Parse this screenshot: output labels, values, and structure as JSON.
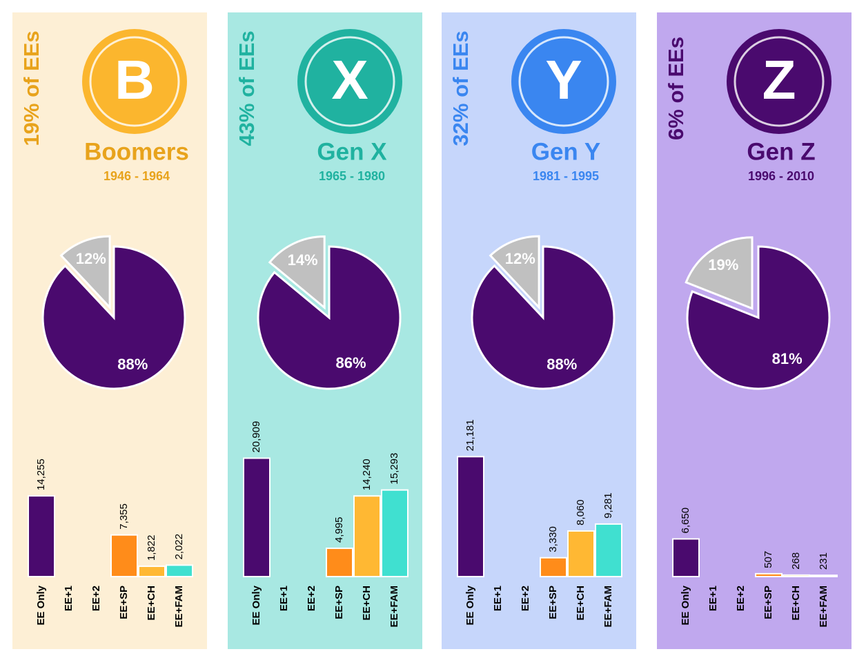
{
  "panels": [
    {
      "share": "19% of EEs",
      "letter": "B",
      "name": "Boomers",
      "years": "1946 - 1964",
      "background": "#fdefd5",
      "accent": "#fbb62e",
      "text_color": "#e8a31c"
    },
    {
      "share": "43% of EEs",
      "letter": "X",
      "name": "Gen X",
      "years": "1965 - 1980",
      "background": "#a8e8e2",
      "accent": "#20b2a0",
      "text_color": "#20b2a0"
    },
    {
      "share": "32% of EEs",
      "letter": "Y",
      "name": "Gen Y",
      "years": "1981 - 1995",
      "background": "#c6d6fb",
      "accent": "#3a86f0",
      "text_color": "#3a86f0"
    },
    {
      "share": "6% of EEs",
      "letter": "Z",
      "name": "Gen Z",
      "years": "1996 - 2010",
      "background": "#c0a8ee",
      "accent": "#4a0a6e",
      "text_color": "#4a0a6e"
    }
  ],
  "chart_data": [
    {
      "type": "pie",
      "values": [
        88,
        12
      ],
      "value_labels": [
        "88%",
        "12%"
      ],
      "colors": [
        "#4a0a6e",
        "#c0c0c0"
      ]
    },
    {
      "type": "pie",
      "values": [
        86,
        14
      ],
      "value_labels": [
        "86%",
        "14%"
      ],
      "colors": [
        "#4a0a6e",
        "#c0c0c0"
      ]
    },
    {
      "type": "pie",
      "values": [
        88,
        12
      ],
      "value_labels": [
        "88%",
        "12%"
      ],
      "colors": [
        "#4a0a6e",
        "#c0c0c0"
      ]
    },
    {
      "type": "pie",
      "values": [
        81,
        19
      ],
      "value_labels": [
        "81%",
        "19%"
      ],
      "colors": [
        "#4a0a6e",
        "#c0c0c0"
      ]
    },
    {
      "type": "bar",
      "categories": [
        "EE Only",
        "EE+1",
        "EE+2",
        "EE+SP",
        "EE+CH",
        "EE+FAM"
      ],
      "values": [
        14255,
        0,
        0,
        7355,
        1822,
        2022
      ],
      "value_labels": [
        "14,255",
        null,
        null,
        "7,355",
        "1,822",
        "2,022"
      ],
      "colors": [
        "#4a0a6e",
        "#4a0a6e",
        "#4a0a6e",
        "#ff8c1a",
        "#ffb833",
        "#40e0d0"
      ],
      "ylim": [
        0,
        25000
      ]
    },
    {
      "type": "bar",
      "categories": [
        "EE Only",
        "EE+1",
        "EE+2",
        "EE+SP",
        "EE+CH",
        "EE+FAM"
      ],
      "values": [
        20909,
        0,
        0,
        4995,
        14240,
        15293
      ],
      "value_labels": [
        "20,909",
        null,
        null,
        "4,995",
        "14,240",
        "15,293"
      ],
      "colors": [
        "#4a0a6e",
        "#4a0a6e",
        "#4a0a6e",
        "#ff8c1a",
        "#ffb833",
        "#40e0d0"
      ],
      "ylim": [
        0,
        25000
      ]
    },
    {
      "type": "bar",
      "categories": [
        "EE Only",
        "EE+1",
        "EE+2",
        "EE+SP",
        "EE+CH",
        "EE+FAM"
      ],
      "values": [
        21181,
        0,
        0,
        3330,
        8060,
        9281
      ],
      "value_labels": [
        "21,181",
        null,
        null,
        "3,330",
        "8,060",
        "9,281"
      ],
      "colors": [
        "#4a0a6e",
        "#4a0a6e",
        "#4a0a6e",
        "#ff8c1a",
        "#ffb833",
        "#40e0d0"
      ],
      "ylim": [
        0,
        25000
      ]
    },
    {
      "type": "bar",
      "categories": [
        "EE Only",
        "EE+1",
        "EE+2",
        "EE+SP",
        "EE+CH",
        "EE+FAM"
      ],
      "values": [
        6650,
        0,
        0,
        507,
        268,
        231
      ],
      "value_labels": [
        "6,650",
        null,
        null,
        "507",
        "268",
        "231"
      ],
      "colors": [
        "#4a0a6e",
        "#4a0a6e",
        "#4a0a6e",
        "#ff8c1a",
        "#ffb833",
        "#40e0d0"
      ],
      "ylim": [
        0,
        25000
      ]
    }
  ]
}
